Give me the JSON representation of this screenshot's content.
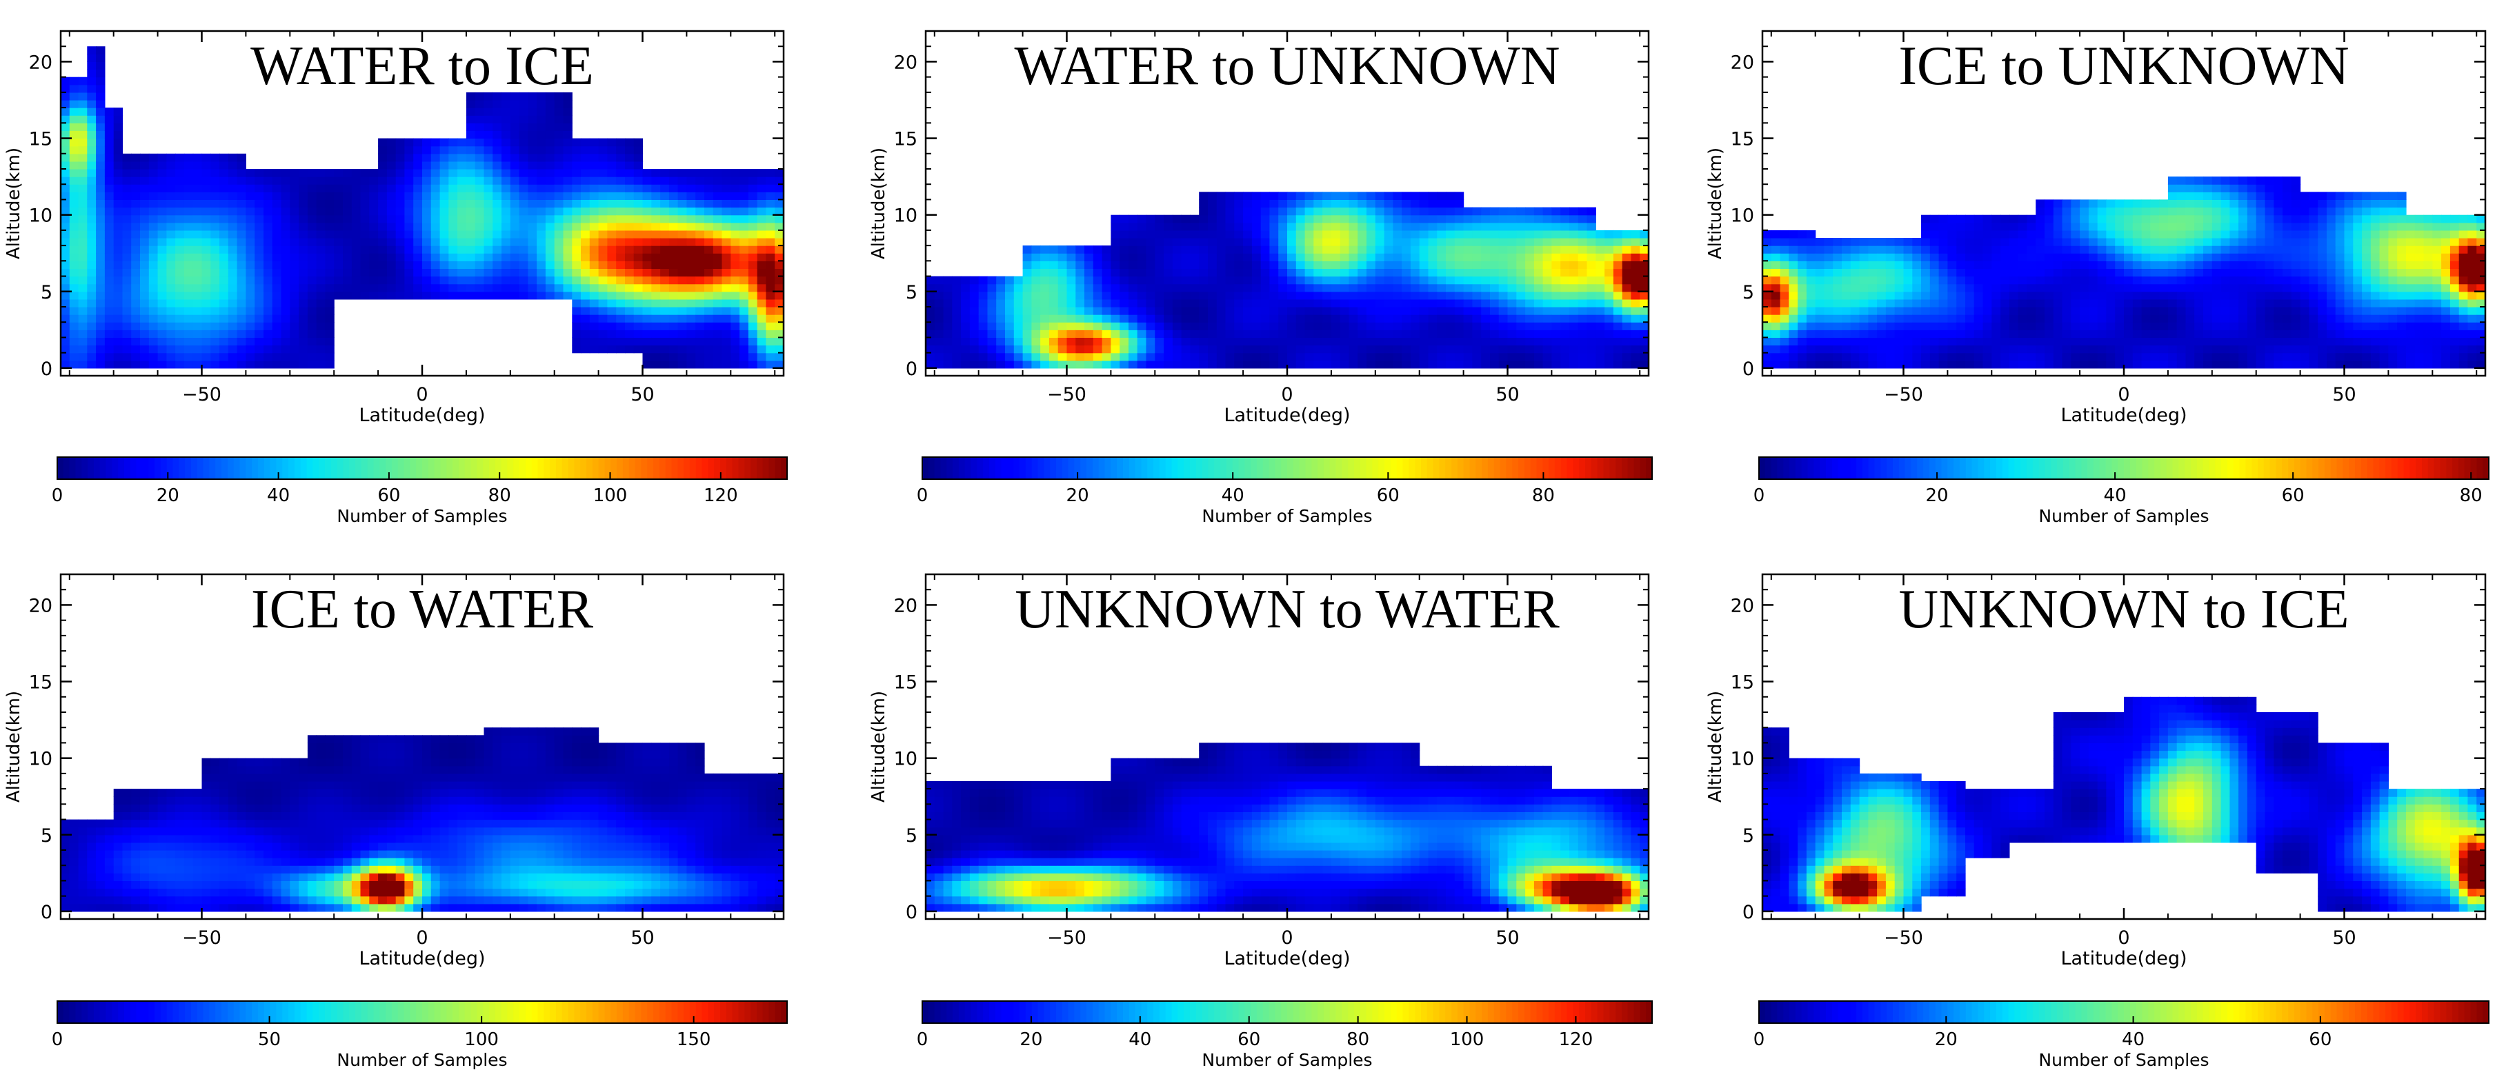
{
  "figure": {
    "xlabel": "Latitude(deg)",
    "ylabel": "Altitude(km)",
    "cbar_label": "Number of Samples"
  },
  "chart_data": [
    {
      "type": "heatmap",
      "title": "WATER to ICE",
      "xlabel": "Latitude(deg)",
      "ylabel": "Altitude(km)",
      "xlim": [
        -82,
        82
      ],
      "ylim": [
        -0.5,
        22
      ],
      "xticks": [
        -50,
        0,
        50
      ],
      "yticks": [
        0,
        5,
        10,
        15,
        20
      ],
      "colorbar": {
        "label": "Number of Samples",
        "range": [
          0,
          132
        ],
        "ticks": [
          0,
          20,
          40,
          60,
          80,
          100,
          120
        ]
      },
      "coverage": [
        {
          "lat": [
            -82,
            -76
          ],
          "alt": [
            0,
            19
          ]
        },
        {
          "lat": [
            -76,
            -72
          ],
          "alt": [
            0,
            21
          ]
        },
        {
          "lat": [
            -72,
            -68
          ],
          "alt": [
            0,
            17
          ]
        },
        {
          "lat": [
            -68,
            -40
          ],
          "alt": [
            0,
            14
          ]
        },
        {
          "lat": [
            -40,
            -20
          ],
          "alt": [
            0,
            13
          ]
        },
        {
          "lat": [
            -20,
            -10
          ],
          "alt": [
            4.5,
            13
          ]
        },
        {
          "lat": [
            -10,
            10
          ],
          "alt": [
            4.5,
            15
          ]
        },
        {
          "lat": [
            10,
            35
          ],
          "alt": [
            4.5,
            18
          ]
        },
        {
          "lat": [
            35,
            50
          ],
          "alt": [
            1,
            15
          ]
        },
        {
          "lat": [
            50,
            82
          ],
          "alt": [
            0,
            13
          ]
        }
      ],
      "hotspots": [
        {
          "lat": 62,
          "alt": 7,
          "value": 132,
          "spread": [
            13,
            2
          ]
        },
        {
          "lat": 80,
          "alt": 5,
          "value": 95,
          "spread": [
            4,
            3
          ]
        },
        {
          "lat": 40,
          "alt": 8,
          "value": 72,
          "spread": [
            10,
            2.5
          ]
        },
        {
          "lat": 10,
          "alt": 10,
          "value": 55,
          "spread": [
            8,
            3
          ]
        },
        {
          "lat": -52,
          "alt": 6,
          "value": 52,
          "spread": [
            12,
            3.5
          ]
        },
        {
          "lat": -78,
          "alt": 9,
          "value": 45,
          "spread": [
            4,
            6
          ]
        },
        {
          "lat": -78,
          "alt": 15,
          "value": 50,
          "spread": [
            3,
            1.5
          ]
        }
      ]
    },
    {
      "type": "heatmap",
      "title": "WATER to UNKNOWN",
      "xlabel": "Latitude(deg)",
      "ylabel": "Altitude(km)",
      "xlim": [
        -82,
        82
      ],
      "ylim": [
        -0.5,
        22
      ],
      "xticks": [
        -50,
        0,
        50
      ],
      "yticks": [
        0,
        5,
        10,
        15,
        20
      ],
      "colorbar": {
        "label": "Number of Samples",
        "range": [
          0,
          94
        ],
        "ticks": [
          0,
          20,
          40,
          60,
          80
        ]
      },
      "coverage": [
        {
          "lat": [
            -82,
            -60
          ],
          "alt": [
            0,
            6
          ]
        },
        {
          "lat": [
            -60,
            -40
          ],
          "alt": [
            0,
            8
          ]
        },
        {
          "lat": [
            -40,
            -20
          ],
          "alt": [
            0,
            10
          ]
        },
        {
          "lat": [
            -20,
            40
          ],
          "alt": [
            0,
            11.5
          ]
        },
        {
          "lat": [
            40,
            70
          ],
          "alt": [
            0,
            10.5
          ]
        },
        {
          "lat": [
            70,
            82
          ],
          "alt": [
            0,
            9
          ]
        }
      ],
      "hotspots": [
        {
          "lat": 80,
          "alt": 6,
          "value": 94,
          "spread": [
            4,
            1.5
          ]
        },
        {
          "lat": 65,
          "alt": 6.5,
          "value": 55,
          "spread": [
            10,
            2
          ]
        },
        {
          "lat": -45,
          "alt": 1.5,
          "value": 75,
          "spread": [
            8,
            1
          ]
        },
        {
          "lat": 10,
          "alt": 8.5,
          "value": 52,
          "spread": [
            8,
            2
          ]
        },
        {
          "lat": -55,
          "alt": 4.5,
          "value": 38,
          "spread": [
            8,
            2.5
          ]
        },
        {
          "lat": 40,
          "alt": 7.5,
          "value": 35,
          "spread": [
            12,
            2
          ]
        }
      ]
    },
    {
      "type": "heatmap",
      "title": "ICE to UNKNOWN",
      "xlabel": "Latitude(deg)",
      "ylabel": "Altitude(km)",
      "xlim": [
        -82,
        82
      ],
      "ylim": [
        -0.5,
        22
      ],
      "xticks": [
        -50,
        0,
        50
      ],
      "yticks": [
        0,
        5,
        10,
        15,
        20
      ],
      "colorbar": {
        "label": "Number of Samples",
        "range": [
          0,
          82
        ],
        "ticks": [
          0,
          20,
          40,
          60,
          80
        ]
      },
      "coverage": [
        {
          "lat": [
            -82,
            -70
          ],
          "alt": [
            0,
            9
          ]
        },
        {
          "lat": [
            -70,
            -45
          ],
          "alt": [
            0,
            8.5
          ]
        },
        {
          "lat": [
            -45,
            -20
          ],
          "alt": [
            0,
            10
          ]
        },
        {
          "lat": [
            -20,
            10
          ],
          "alt": [
            0,
            11
          ]
        },
        {
          "lat": [
            10,
            40
          ],
          "alt": [
            0,
            12.5
          ]
        },
        {
          "lat": [
            40,
            65
          ],
          "alt": [
            0,
            11.5
          ]
        },
        {
          "lat": [
            65,
            82
          ],
          "alt": [
            0,
            10
          ]
        }
      ],
      "hotspots": [
        {
          "lat": 80,
          "alt": 6.5,
          "value": 82,
          "spread": [
            4,
            1.5
          ]
        },
        {
          "lat": -80,
          "alt": 4.5,
          "value": 68,
          "spread": [
            4,
            1.5
          ]
        },
        {
          "lat": 65,
          "alt": 7.5,
          "value": 45,
          "spread": [
            12,
            2.5
          ]
        },
        {
          "lat": 10,
          "alt": 9.5,
          "value": 36,
          "spread": [
            15,
            2
          ]
        },
        {
          "lat": -60,
          "alt": 5.5,
          "value": 30,
          "spread": [
            15,
            2
          ]
        }
      ]
    },
    {
      "type": "heatmap",
      "title": "ICE to WATER",
      "xlabel": "Latitude(deg)",
      "ylabel": "Altitude(km)",
      "xlim": [
        -82,
        82
      ],
      "ylim": [
        -0.5,
        22
      ],
      "xticks": [
        -50,
        0,
        50
      ],
      "yticks": [
        0,
        5,
        10,
        15,
        20
      ],
      "colorbar": {
        "label": "Number of Samples",
        "range": [
          0,
          172
        ],
        "ticks": [
          0,
          50,
          100,
          150
        ]
      },
      "coverage": [
        {
          "lat": [
            -82,
            -70
          ],
          "alt": [
            0,
            6
          ]
        },
        {
          "lat": [
            -70,
            -50
          ],
          "alt": [
            0,
            8
          ]
        },
        {
          "lat": [
            -50,
            -25
          ],
          "alt": [
            0,
            10
          ]
        },
        {
          "lat": [
            -25,
            15
          ],
          "alt": [
            0,
            11.5
          ]
        },
        {
          "lat": [
            15,
            40
          ],
          "alt": [
            0,
            12
          ]
        },
        {
          "lat": [
            40,
            65
          ],
          "alt": [
            0,
            11
          ]
        },
        {
          "lat": [
            65,
            82
          ],
          "alt": [
            0,
            9
          ]
        }
      ],
      "hotspots": [
        {
          "lat": -8,
          "alt": 1.5,
          "value": 172,
          "spread": [
            5,
            1
          ]
        },
        {
          "lat": -20,
          "alt": 1.5,
          "value": 55,
          "spread": [
            10,
            1
          ]
        },
        {
          "lat": 40,
          "alt": 1.5,
          "value": 45,
          "spread": [
            25,
            1
          ]
        },
        {
          "lat": 25,
          "alt": 4,
          "value": 35,
          "spread": [
            25,
            2
          ]
        },
        {
          "lat": -55,
          "alt": 3,
          "value": 30,
          "spread": [
            15,
            2
          ]
        }
      ]
    },
    {
      "type": "heatmap",
      "title": "UNKNOWN to WATER",
      "xlabel": "Latitude(deg)",
      "ylabel": "Altitude(km)",
      "xlim": [
        -82,
        82
      ],
      "ylim": [
        -0.5,
        22
      ],
      "xticks": [
        -50,
        0,
        50
      ],
      "yticks": [
        0,
        5,
        10,
        15,
        20
      ],
      "colorbar": {
        "label": "Number of Samples",
        "range": [
          0,
          134
        ],
        "ticks": [
          0,
          20,
          40,
          60,
          80,
          100,
          120
        ]
      },
      "coverage": [
        {
          "lat": [
            -82,
            -40
          ],
          "alt": [
            0,
            8.5
          ]
        },
        {
          "lat": [
            -40,
            -20
          ],
          "alt": [
            0,
            10
          ]
        },
        {
          "lat": [
            -20,
            30
          ],
          "alt": [
            0,
            11
          ]
        },
        {
          "lat": [
            30,
            60
          ],
          "alt": [
            0,
            9.5
          ]
        },
        {
          "lat": [
            60,
            82
          ],
          "alt": [
            0,
            8
          ]
        }
      ],
      "hotspots": [
        {
          "lat": 72,
          "alt": 1.2,
          "value": 134,
          "spread": [
            7,
            1
          ]
        },
        {
          "lat": 60,
          "alt": 1.5,
          "value": 80,
          "spread": [
            8,
            1
          ]
        },
        {
          "lat": -52,
          "alt": 1.5,
          "value": 92,
          "spread": [
            18,
            1
          ]
        },
        {
          "lat": 10,
          "alt": 5,
          "value": 38,
          "spread": [
            20,
            2
          ]
        },
        {
          "lat": 60,
          "alt": 4.5,
          "value": 38,
          "spread": [
            15,
            2
          ]
        }
      ]
    },
    {
      "type": "heatmap",
      "title": "UNKNOWN to ICE",
      "xlabel": "Latitude(deg)",
      "ylabel": "Altitude(km)",
      "xlim": [
        -82,
        82
      ],
      "ylim": [
        -0.5,
        22
      ],
      "xticks": [
        -50,
        0,
        50
      ],
      "yticks": [
        0,
        5,
        10,
        15,
        20
      ],
      "colorbar": {
        "label": "Number of Samples",
        "range": [
          0,
          78
        ],
        "ticks": [
          0,
          20,
          40,
          60
        ]
      },
      "coverage": [
        {
          "lat": [
            -82,
            -75
          ],
          "alt": [
            0,
            12
          ]
        },
        {
          "lat": [
            -75,
            -60
          ],
          "alt": [
            0,
            10
          ]
        },
        {
          "lat": [
            -60,
            -45
          ],
          "alt": [
            0,
            9
          ]
        },
        {
          "lat": [
            -45,
            -35
          ],
          "alt": [
            1,
            8.5
          ]
        },
        {
          "lat": [
            -35,
            -25
          ],
          "alt": [
            3.5,
            8
          ]
        },
        {
          "lat": [
            -25,
            -15
          ],
          "alt": [
            4.5,
            8
          ]
        },
        {
          "lat": [
            -15,
            0
          ],
          "alt": [
            4.5,
            13
          ]
        },
        {
          "lat": [
            0,
            30
          ],
          "alt": [
            4.5,
            14
          ]
        },
        {
          "lat": [
            30,
            45
          ],
          "alt": [
            2.5,
            13
          ]
        },
        {
          "lat": [
            45,
            60
          ],
          "alt": [
            0,
            11
          ]
        },
        {
          "lat": [
            60,
            82
          ],
          "alt": [
            0,
            8
          ]
        }
      ],
      "hotspots": [
        {
          "lat": 80,
          "alt": 2.5,
          "value": 78,
          "spread": [
            3,
            1.5
          ]
        },
        {
          "lat": -62,
          "alt": 1.5,
          "value": 70,
          "spread": [
            6,
            1
          ]
        },
        {
          "lat": 70,
          "alt": 5,
          "value": 45,
          "spread": [
            10,
            2.5
          ]
        },
        {
          "lat": 15,
          "alt": 7,
          "value": 45,
          "spread": [
            8,
            3
          ]
        },
        {
          "lat": -55,
          "alt": 4.5,
          "value": 35,
          "spread": [
            10,
            3
          ]
        }
      ]
    }
  ]
}
